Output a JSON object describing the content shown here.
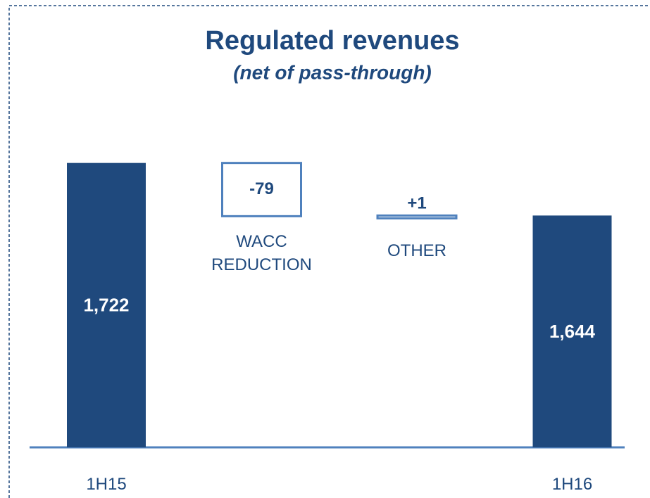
{
  "chart_data": {
    "type": "waterfall",
    "title": "Regulated revenues",
    "subtitle": "(net of pass-through)",
    "categories": [
      "1H15",
      "WACC REDUCTION",
      "OTHER",
      "1H16"
    ],
    "values": [
      1722,
      -79,
      1,
      1644
    ],
    "value_labels": [
      "1,722",
      "-79",
      "+1",
      "1,644"
    ],
    "totals": [
      true,
      false,
      false,
      true
    ],
    "color": "#1f497d",
    "delta_color": "#4f81bd",
    "ylim": [
      1300,
      1730
    ]
  }
}
